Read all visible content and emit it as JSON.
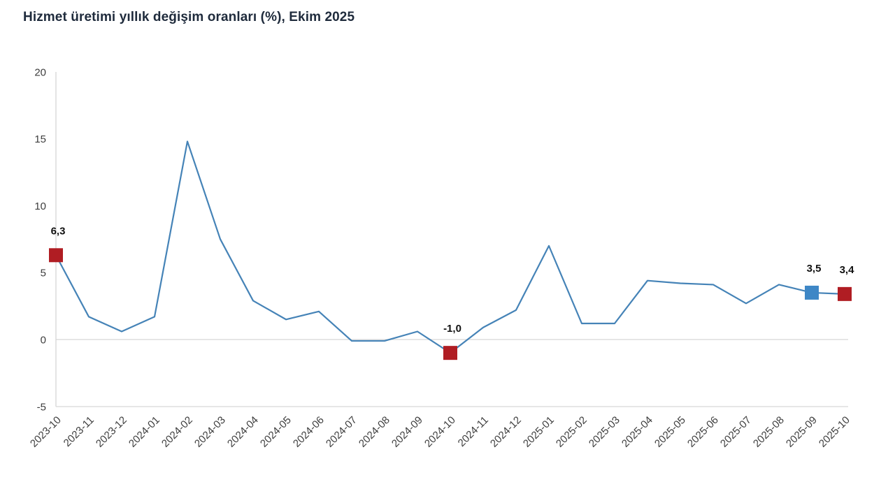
{
  "title": "Hizmet üretimi yıllık değişim oranları (%), Ekim 2025",
  "colors": {
    "title_text": "#1f2b3c",
    "tick_text": "#3d3d3d",
    "axis_line": "#d6d6d6",
    "line": "#4583b7",
    "marker_red": "#b01d23",
    "marker_blue": "#3e87c6",
    "data_label_text": "#111111"
  },
  "chart_data": {
    "type": "line",
    "title": "Hizmet üretimi yıllık değişim oranları (%), Ekim 2025",
    "xlabel": "",
    "ylabel": "",
    "legend": "none",
    "grid": "horizontal lines at 0 and -5 only, vertical axis line at left",
    "ylim": [
      -5,
      20
    ],
    "yticks": [
      20,
      15,
      10,
      5,
      0,
      -5
    ],
    "x": [
      "2023-10",
      "2023-11",
      "2023-12",
      "2024-01",
      "2024-02",
      "2024-03",
      "2024-04",
      "2024-05",
      "2024-06",
      "2024-07",
      "2024-08",
      "2024-09",
      "2024-10",
      "2024-11",
      "2024-12",
      "2025-01",
      "2025-02",
      "2025-03",
      "2025-04",
      "2025-05",
      "2025-06",
      "2025-07",
      "2025-08",
      "2025-09",
      "2025-10"
    ],
    "values": [
      6.3,
      1.7,
      0.6,
      1.7,
      14.8,
      7.5,
      2.9,
      1.5,
      2.1,
      -0.1,
      -0.1,
      0.6,
      -1.0,
      0.9,
      2.2,
      7.0,
      1.2,
      1.2,
      4.4,
      4.2,
      4.1,
      2.7,
      4.1,
      3.5,
      3.4
    ],
    "line_color": "#4583b7",
    "axis_color": "#d6d6d6",
    "highlighted_points": [
      {
        "x": "2023-10",
        "value": 6.3,
        "label": "6,3",
        "marker_color": "#b01d23"
      },
      {
        "x": "2024-10",
        "value": -1.0,
        "label": "-1,0",
        "marker_color": "#b01d23"
      },
      {
        "x": "2025-09",
        "value": 3.5,
        "label": "3,5",
        "marker_color": "#3e87c6"
      },
      {
        "x": "2025-10",
        "value": 3.4,
        "label": "3,4",
        "marker_color": "#b01d23"
      }
    ]
  }
}
